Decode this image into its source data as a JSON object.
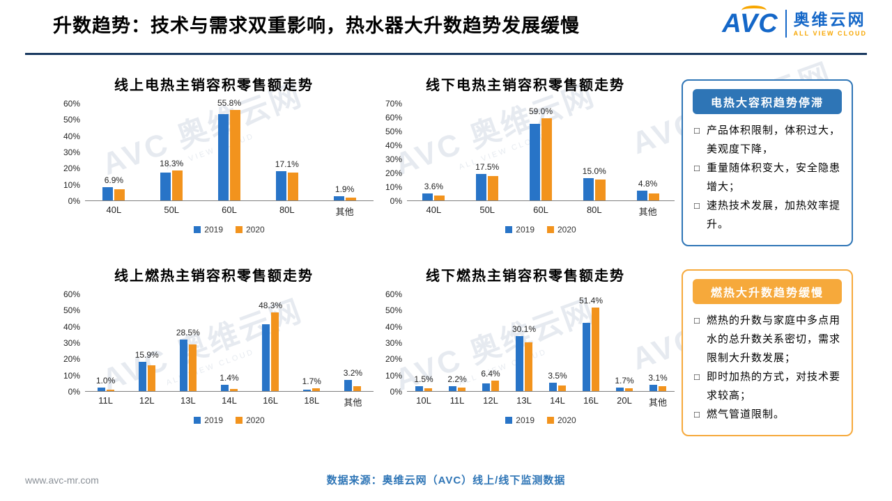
{
  "header": {
    "title": "升数趋势：技术与需求双重影响，热水器大升数趋势发展缓慢",
    "logo": {
      "name": "AVC",
      "cn": "奥维云网",
      "tagline": "ALL VIEW CLOUD"
    }
  },
  "watermark": {
    "line1": "AVC 奥维云网",
    "line2": "ALL VIEW CLOUD"
  },
  "chart_data": [
    {
      "type": "bar",
      "title": "线上电热主销容积零售额走势",
      "categories": [
        "40L",
        "50L",
        "60L",
        "80L",
        "其他"
      ],
      "series": [
        {
          "name": "2019",
          "color": "#2874c7",
          "values": [
            8.0,
            17.0,
            53.0,
            18.0,
            2.5
          ]
        },
        {
          "name": "2020",
          "color": "#f2931d",
          "values": [
            6.9,
            18.3,
            55.8,
            17.1,
            1.9
          ]
        }
      ],
      "labels": [
        "6.9%",
        "18.3%",
        "55.8%",
        "17.1%",
        "1.9%"
      ],
      "ymax": 60,
      "ticks": [
        "0%",
        "10%",
        "20%",
        "30%",
        "40%",
        "50%",
        "60%"
      ],
      "legend_position": "bottom"
    },
    {
      "type": "bar",
      "title": "线下电热主销容积零售额走势",
      "categories": [
        "40L",
        "50L",
        "60L",
        "80L",
        "其他"
      ],
      "series": [
        {
          "name": "2019",
          "color": "#2874c7",
          "values": [
            5.0,
            19.0,
            55.0,
            16.0,
            7.0
          ]
        },
        {
          "name": "2020",
          "color": "#f2931d",
          "values": [
            3.6,
            17.5,
            59.0,
            15.0,
            4.8
          ]
        }
      ],
      "labels": [
        "3.6%",
        "17.5%",
        "59.0%",
        "15.0%",
        "4.8%"
      ],
      "ymax": 70,
      "ticks": [
        "0%",
        "10%",
        "20%",
        "30%",
        "40%",
        "50%",
        "60%",
        "70%"
      ],
      "legend_position": "bottom"
    },
    {
      "type": "bar",
      "title": "线上燃热主销容积零售额走势",
      "categories": [
        "11L",
        "12L",
        "13L",
        "14L",
        "16L",
        "18L",
        "其他"
      ],
      "series": [
        {
          "name": "2019",
          "color": "#2874c7",
          "values": [
            2.0,
            18.0,
            31.5,
            4.0,
            41.0,
            1.0,
            7.0
          ]
        },
        {
          "name": "2020",
          "color": "#f2931d",
          "values": [
            1.0,
            15.9,
            28.5,
            1.4,
            48.3,
            1.7,
            3.2
          ]
        }
      ],
      "labels": [
        "1.0%",
        "15.9%",
        "28.5%",
        "1.4%",
        "48.3%",
        "1.7%",
        "3.2%"
      ],
      "ymax": 60,
      "ticks": [
        "0%",
        "10%",
        "20%",
        "30%",
        "40%",
        "50%",
        "60%"
      ],
      "legend_position": "bottom"
    },
    {
      "type": "bar",
      "title": "线下燃热主销容积零售额走势",
      "categories": [
        "10L",
        "11L",
        "12L",
        "13L",
        "14L",
        "16L",
        "20L",
        "其他"
      ],
      "series": [
        {
          "name": "2019",
          "color": "#2874c7",
          "values": [
            3.0,
            3.0,
            4.5,
            34.0,
            5.0,
            42.0,
            2.0,
            4.0
          ]
        },
        {
          "name": "2020",
          "color": "#f2931d",
          "values": [
            1.5,
            2.2,
            6.4,
            30.1,
            3.5,
            51.4,
            1.7,
            3.1
          ]
        }
      ],
      "labels": [
        "1.5%",
        "2.2%",
        "6.4%",
        "30.1%",
        "3.5%",
        "51.4%",
        "1.7%",
        "3.1%"
      ],
      "ymax": 60,
      "ticks": [
        "0%",
        "10%",
        "20%",
        "30%",
        "40%",
        "50%",
        "60%"
      ],
      "legend_position": "bottom"
    }
  ],
  "panels": [
    {
      "title": "电热大容积趋势停滞",
      "color": "#2e75b6",
      "items": [
        "产品体积限制，体积过大，美观度下降，",
        "重量随体积变大，安全隐患增大；",
        "速热技术发展，加热效率提升。"
      ]
    },
    {
      "title": "燃热大升数趋势缓慢",
      "color": "#f6a93b",
      "items": [
        "燃热的升数与家庭中多点用水的总升数关系密切，需求限制大升数发展；",
        "即时加热的方式，对技术要求较高；",
        "燃气管道限制。"
      ]
    }
  ],
  "footer": {
    "url": "www.avc-mr.com",
    "source": "数据来源：奥维云网（AVC）线上/线下监测数据"
  }
}
